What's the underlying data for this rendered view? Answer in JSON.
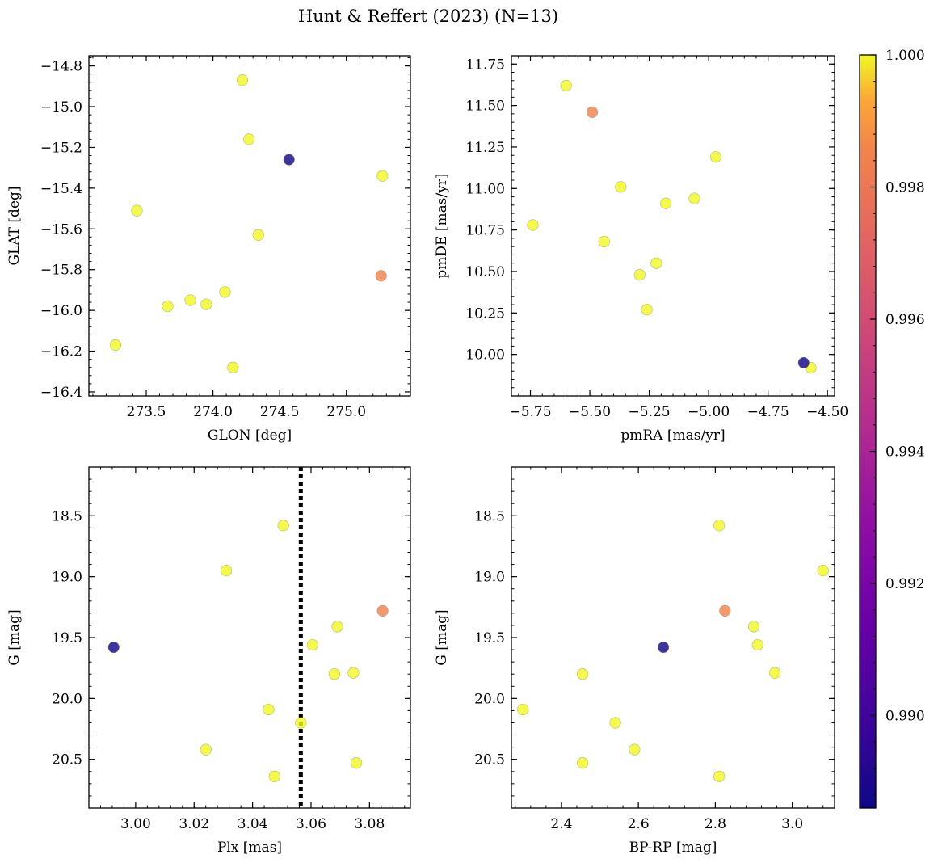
{
  "figure": {
    "title": "Hunt & Reffert (2023) (N=13)"
  },
  "colorbar": {
    "colormap": "plasma",
    "range": [
      0.9886,
      1.0
    ],
    "tick_values": [
      0.99,
      0.992,
      0.994,
      0.996,
      0.998,
      1.0
    ],
    "tick_labels": [
      "0.990",
      "0.992",
      "0.994",
      "0.996",
      "0.998",
      "1.000"
    ]
  },
  "chart_data": [
    {
      "type": "scatter",
      "name": "position",
      "xlabel": "GLON [deg]",
      "ylabel": "GLAT [deg]",
      "xlim": [
        273.07,
        275.48
      ],
      "ylim": [
        -16.42,
        -14.75
      ],
      "y_inverted": false,
      "xticks": [
        273.5,
        274.0,
        274.5,
        275.0
      ],
      "xtick_labels": [
        "273.5",
        "274.0",
        "274.5",
        "275.0"
      ],
      "yticks": [
        -14.8,
        -15.0,
        -15.2,
        -15.4,
        -15.6,
        -15.8,
        -16.0,
        -16.2,
        -16.4
      ],
      "ytick_labels": [
        "−14.8",
        "−15.0",
        "−15.2",
        "−15.4",
        "−15.6",
        "−15.8",
        "−16.0",
        "−16.2",
        "−16.4"
      ],
      "points": [
        {
          "x": 274.22,
          "y": -14.87,
          "c": 1.0
        },
        {
          "x": 274.27,
          "y": -15.16,
          "c": 1.0
        },
        {
          "x": 274.57,
          "y": -15.26,
          "c": 0.9888
        },
        {
          "x": 275.27,
          "y": -15.34,
          "c": 1.0
        },
        {
          "x": 273.43,
          "y": -15.51,
          "c": 1.0
        },
        {
          "x": 274.34,
          "y": -15.63,
          "c": 1.0
        },
        {
          "x": 275.26,
          "y": -15.83,
          "c": 0.9985
        },
        {
          "x": 274.09,
          "y": -15.91,
          "c": 1.0
        },
        {
          "x": 273.83,
          "y": -15.95,
          "c": 1.0
        },
        {
          "x": 273.95,
          "y": -15.97,
          "c": 1.0
        },
        {
          "x": 273.66,
          "y": -15.98,
          "c": 1.0
        },
        {
          "x": 273.27,
          "y": -16.17,
          "c": 1.0
        },
        {
          "x": 274.15,
          "y": -16.28,
          "c": 1.0
        }
      ]
    },
    {
      "type": "scatter",
      "name": "proper-motion",
      "xlabel": "pmRA [mas/yr]",
      "ylabel": "pmDE [mas/yr]",
      "xlim": [
        -5.83,
        -4.47
      ],
      "ylim": [
        9.75,
        11.8
      ],
      "y_inverted": false,
      "xticks": [
        -5.75,
        -5.5,
        -5.25,
        -5.0,
        -4.75,
        -4.5
      ],
      "xtick_labels": [
        "−5.75",
        "−5.50",
        "−5.25",
        "−5.00",
        "−4.75",
        "−4.50"
      ],
      "yticks": [
        10.0,
        10.25,
        10.5,
        10.75,
        11.0,
        11.25,
        11.5,
        11.75
      ],
      "ytick_labels": [
        "10.00",
        "10.25",
        "10.50",
        "10.75",
        "11.00",
        "11.25",
        "11.50",
        "11.75"
      ],
      "points": [
        {
          "x": -5.6,
          "y": 11.62,
          "c": 1.0
        },
        {
          "x": -5.49,
          "y": 11.46,
          "c": 0.9985
        },
        {
          "x": -4.97,
          "y": 11.19,
          "c": 1.0
        },
        {
          "x": -5.37,
          "y": 11.01,
          "c": 1.0
        },
        {
          "x": -5.06,
          "y": 10.94,
          "c": 1.0
        },
        {
          "x": -5.18,
          "y": 10.91,
          "c": 1.0
        },
        {
          "x": -5.74,
          "y": 10.78,
          "c": 1.0
        },
        {
          "x": -5.44,
          "y": 10.68,
          "c": 1.0
        },
        {
          "x": -5.22,
          "y": 10.55,
          "c": 1.0
        },
        {
          "x": -5.29,
          "y": 10.48,
          "c": 1.0
        },
        {
          "x": -5.26,
          "y": 10.27,
          "c": 1.0
        },
        {
          "x": -4.6,
          "y": 9.95,
          "c": 0.9888
        },
        {
          "x": -4.57,
          "y": 9.92,
          "c": 1.0
        }
      ]
    },
    {
      "type": "scatter",
      "name": "parallax-magnitude",
      "xlabel": "Plx [mas]",
      "ylabel": "G [mag]",
      "xlim": [
        2.984,
        3.094
      ],
      "ylim": [
        18.1,
        20.9
      ],
      "y_inverted": true,
      "vline": {
        "x": 3.0565,
        "style": "dotted"
      },
      "xticks": [
        3.0,
        3.02,
        3.04,
        3.06,
        3.08
      ],
      "xtick_labels": [
        "3.00",
        "3.02",
        "3.04",
        "3.06",
        "3.08"
      ],
      "yticks": [
        18.5,
        19.0,
        19.5,
        20.0,
        20.5
      ],
      "ytick_labels": [
        "18.5",
        "19.0",
        "19.5",
        "20.0",
        "20.5"
      ],
      "points": [
        {
          "x": 3.0505,
          "y": 18.58,
          "c": 1.0
        },
        {
          "x": 3.031,
          "y": 18.95,
          "c": 1.0
        },
        {
          "x": 3.0845,
          "y": 19.28,
          "c": 0.9985
        },
        {
          "x": 3.069,
          "y": 19.41,
          "c": 1.0
        },
        {
          "x": 3.0605,
          "y": 19.56,
          "c": 1.0
        },
        {
          "x": 2.9925,
          "y": 19.58,
          "c": 0.9888
        },
        {
          "x": 3.068,
          "y": 19.8,
          "c": 1.0
        },
        {
          "x": 3.0745,
          "y": 19.79,
          "c": 1.0
        },
        {
          "x": 3.0455,
          "y": 20.09,
          "c": 1.0
        },
        {
          "x": 3.0565,
          "y": 20.2,
          "c": 1.0
        },
        {
          "x": 3.024,
          "y": 20.42,
          "c": 1.0
        },
        {
          "x": 3.0755,
          "y": 20.53,
          "c": 1.0
        },
        {
          "x": 3.0475,
          "y": 20.64,
          "c": 1.0
        }
      ]
    },
    {
      "type": "scatter",
      "name": "color-magnitude",
      "xlabel": "BP-RP [mag]",
      "ylabel": "G [mag]",
      "xlim": [
        2.27,
        3.11
      ],
      "ylim": [
        18.1,
        20.9
      ],
      "y_inverted": true,
      "xticks": [
        2.4,
        2.6,
        2.8,
        3.0
      ],
      "xtick_labels": [
        "2.4",
        "2.6",
        "2.8",
        "3.0"
      ],
      "yticks": [
        18.5,
        19.0,
        19.5,
        20.0,
        20.5
      ],
      "ytick_labels": [
        "18.5",
        "19.0",
        "19.5",
        "20.0",
        "20.5"
      ],
      "points": [
        {
          "x": 2.81,
          "y": 18.58,
          "c": 1.0
        },
        {
          "x": 3.08,
          "y": 18.95,
          "c": 1.0
        },
        {
          "x": 2.825,
          "y": 19.28,
          "c": 0.9985
        },
        {
          "x": 2.9,
          "y": 19.41,
          "c": 1.0
        },
        {
          "x": 2.91,
          "y": 19.56,
          "c": 1.0
        },
        {
          "x": 2.665,
          "y": 19.58,
          "c": 0.9888
        },
        {
          "x": 2.955,
          "y": 19.79,
          "c": 1.0
        },
        {
          "x": 2.455,
          "y": 19.8,
          "c": 1.0
        },
        {
          "x": 2.3,
          "y": 20.09,
          "c": 1.0
        },
        {
          "x": 2.54,
          "y": 20.2,
          "c": 1.0
        },
        {
          "x": 2.59,
          "y": 20.42,
          "c": 1.0
        },
        {
          "x": 2.455,
          "y": 20.53,
          "c": 1.0
        },
        {
          "x": 2.81,
          "y": 20.64,
          "c": 1.0
        }
      ]
    }
  ]
}
